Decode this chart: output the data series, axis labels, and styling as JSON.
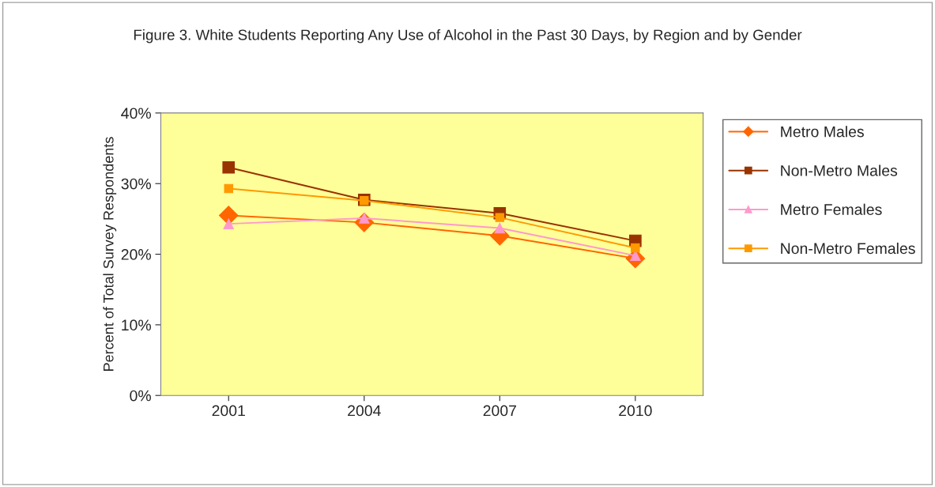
{
  "chart_data": {
    "type": "line",
    "title": "Figure 3. White Students Reporting Any Use of Alcohol in the Past 30 Days, by Region and by Gender",
    "ylabel": "Percent of Total Survey Respondents",
    "categories": [
      "2001",
      "2004",
      "2007",
      "2010"
    ],
    "series": [
      {
        "name": "Metro Males",
        "color": "#ff6600",
        "marker": "diamond",
        "values": [
          25.5,
          24.5,
          22.6,
          19.4
        ]
      },
      {
        "name": "Non-Metro Males",
        "color": "#993300",
        "marker": "square",
        "values": [
          32.3,
          27.7,
          25.8,
          21.9
        ]
      },
      {
        "name": "Metro Females",
        "color": "#ff99cc",
        "marker": "triangle",
        "values": [
          24.3,
          25.1,
          23.7,
          19.8
        ]
      },
      {
        "name": "Non-Metro Females",
        "color": "#ff9900",
        "marker": "square",
        "values": [
          29.3,
          27.6,
          25.2,
          20.9
        ]
      }
    ],
    "ylim": [
      0,
      40
    ],
    "yticks": [
      {
        "value": 0,
        "label": "0%"
      },
      {
        "value": 10,
        "label": "10%"
      },
      {
        "value": 20,
        "label": "20%"
      },
      {
        "value": 30,
        "label": "30%"
      },
      {
        "value": 40,
        "label": "40%"
      }
    ],
    "grid": false,
    "legend": "right"
  }
}
